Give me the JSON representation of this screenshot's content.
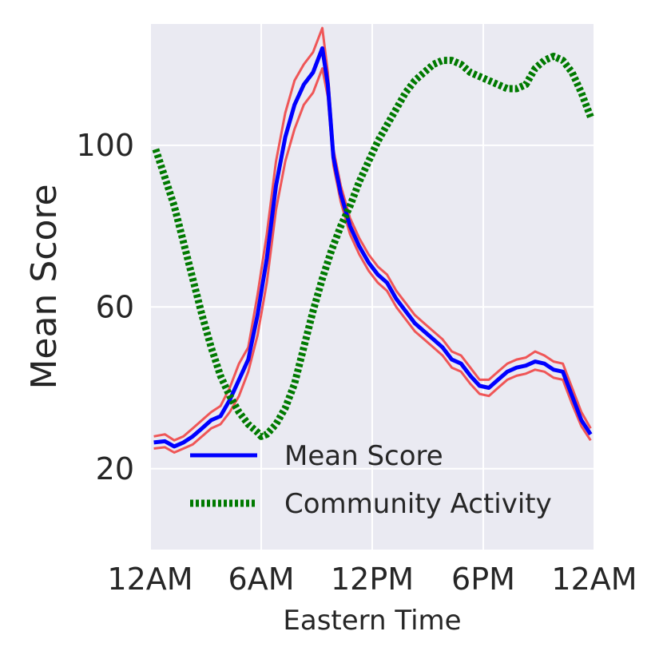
{
  "chart_data": {
    "type": "line",
    "title": "",
    "xlabel": "Eastern Time",
    "ylabel": "Mean Score",
    "x_unit": "hours since midnight",
    "xlim": [
      0,
      24
    ],
    "ylim": [
      0,
      130
    ],
    "x_ticks": [
      0,
      6,
      12,
      18,
      24
    ],
    "x_tick_labels": [
      "12AM",
      "6AM",
      "12PM",
      "6PM",
      "12AM"
    ],
    "y_ticks": [
      20,
      60,
      100
    ],
    "y_tick_labels": [
      "20",
      "60",
      "100"
    ],
    "grid": true,
    "legend_position": "bottom-center",
    "colors": {
      "background": "#EAEAF2",
      "grid": "#FFFFFF",
      "mean": "#0000FF",
      "band": "#F04646",
      "activity": "#007A00"
    },
    "series": [
      {
        "name": "Mean Score",
        "style": "solid",
        "x": [
          0.2,
          0.8,
          1.3,
          1.8,
          2.3,
          2.8,
          3.3,
          3.8,
          4.3,
          4.8,
          5.3,
          5.8,
          6.3,
          6.8,
          7.3,
          7.8,
          8.3,
          8.8,
          9.3,
          9.6,
          9.9,
          10.3,
          10.8,
          11.3,
          11.8,
          12.3,
          12.8,
          13.3,
          13.8,
          14.3,
          14.8,
          15.3,
          15.8,
          16.3,
          16.8,
          17.3,
          17.8,
          18.3,
          18.8,
          19.3,
          19.8,
          20.3,
          20.8,
          21.3,
          21.8,
          22.3,
          22.8,
          23.3,
          23.8
        ],
        "values": [
          26.5,
          26.8,
          25.5,
          26.5,
          28,
          30,
          32,
          33,
          37,
          42,
          47,
          58,
          72,
          90,
          102,
          110,
          115,
          118,
          124,
          115,
          97,
          88,
          80,
          75,
          71,
          68,
          66,
          62,
          59,
          56,
          54,
          52,
          50,
          47,
          46,
          43,
          40.5,
          40,
          42,
          44,
          45,
          45.5,
          46.5,
          46,
          44.5,
          44,
          38,
          32,
          28.5
        ]
      },
      {
        "name": "Mean Score Upper Bound",
        "style": "band",
        "x": [
          0.2,
          0.8,
          1.3,
          1.8,
          2.3,
          2.8,
          3.3,
          3.8,
          4.3,
          4.8,
          5.3,
          5.8,
          6.3,
          6.8,
          7.3,
          7.8,
          8.3,
          8.8,
          9.3,
          9.6,
          9.9,
          10.3,
          10.8,
          11.3,
          11.8,
          12.3,
          12.8,
          13.3,
          13.8,
          14.3,
          14.8,
          15.3,
          15.8,
          16.3,
          16.8,
          17.3,
          17.8,
          18.3,
          18.8,
          19.3,
          19.8,
          20.3,
          20.8,
          21.3,
          21.8,
          22.3,
          22.8,
          23.3,
          23.8
        ],
        "values": [
          28,
          28.5,
          27,
          28,
          30,
          32,
          34,
          35.5,
          40,
          46,
          50,
          63,
          78,
          96,
          108,
          116,
          120,
          123,
          129,
          118,
          99,
          90,
          82,
          77,
          73,
          70,
          68,
          64,
          61,
          58,
          56,
          54,
          52,
          49,
          48,
          45,
          42,
          42,
          44,
          46,
          47,
          47.5,
          49,
          48,
          46.5,
          46,
          40,
          34,
          30
        ]
      },
      {
        "name": "Mean Score Lower Bound",
        "style": "band",
        "x": [
          0.2,
          0.8,
          1.3,
          1.8,
          2.3,
          2.8,
          3.3,
          3.8,
          4.3,
          4.8,
          5.3,
          5.8,
          6.3,
          6.8,
          7.3,
          7.8,
          8.3,
          8.8,
          9.3,
          9.6,
          9.9,
          10.3,
          10.8,
          11.3,
          11.8,
          12.3,
          12.8,
          13.3,
          13.8,
          14.3,
          14.8,
          15.3,
          15.8,
          16.3,
          16.8,
          17.3,
          17.8,
          18.3,
          18.8,
          19.3,
          19.8,
          20.3,
          20.8,
          21.3,
          21.8,
          22.3,
          22.8,
          23.3,
          23.8
        ],
        "values": [
          25,
          25.3,
          24,
          25,
          26,
          28,
          30,
          31,
          34,
          38,
          44,
          53,
          66,
          84,
          96,
          104,
          110,
          113,
          119,
          112,
          95,
          86,
          78,
          73,
          69,
          66,
          64,
          60,
          57,
          54,
          52,
          50,
          48,
          45,
          44,
          41,
          38.5,
          38,
          40,
          42,
          43,
          43.5,
          44.5,
          44,
          42.5,
          42,
          36,
          30.5,
          27
        ]
      },
      {
        "name": "Community Activity",
        "style": "dotted",
        "x": [
          0.3,
          0.8,
          1.3,
          1.8,
          2.3,
          2.8,
          3.3,
          3.8,
          4.3,
          4.8,
          5.3,
          5.8,
          6.0,
          6.3,
          6.8,
          7.3,
          7.8,
          8.3,
          8.8,
          9.3,
          9.8,
          10.3,
          10.8,
          11.3,
          11.8,
          12.3,
          12.8,
          13.3,
          13.8,
          14.3,
          14.8,
          15.3,
          15.8,
          16.3,
          16.8,
          17.3,
          17.8,
          18.3,
          18.8,
          19.3,
          19.8,
          20.3,
          20.8,
          21.3,
          21.8,
          22.3,
          22.8,
          23.3,
          23.8
        ],
        "values": [
          99,
          92,
          85,
          76,
          67,
          58,
          50,
          43,
          38,
          34,
          31,
          29,
          28,
          28.5,
          31,
          35,
          41,
          50,
          59,
          67,
          74,
          80,
          85,
          91,
          96,
          101,
          105,
          109,
          113,
          116,
          118,
          120,
          121,
          121,
          120,
          118,
          117,
          116,
          115,
          114,
          114,
          115,
          119,
          121,
          122,
          121,
          118,
          113,
          107
        ]
      }
    ],
    "legend": [
      {
        "label": "Mean Score",
        "style": "solid"
      },
      {
        "label": "Community Activity",
        "style": "dotted"
      }
    ]
  }
}
